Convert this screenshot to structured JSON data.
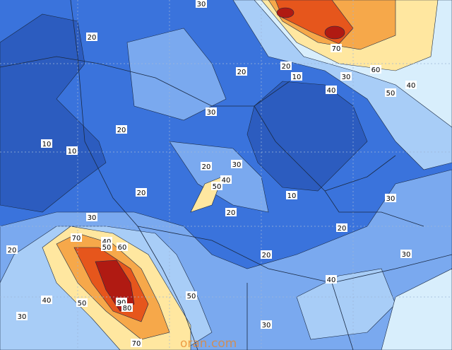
{
  "contour_labels": [
    30,
    20,
    20,
    20,
    10,
    30,
    60,
    70,
    40,
    50,
    40,
    30,
    20,
    10,
    10,
    20,
    30,
    40,
    50,
    20,
    10,
    30,
    20,
    30,
    20,
    70,
    40,
    50,
    60,
    20,
    20,
    30,
    40,
    50,
    40,
    50,
    90,
    80,
    30,
    30,
    70
  ],
  "watermark": "oran.com"
}
